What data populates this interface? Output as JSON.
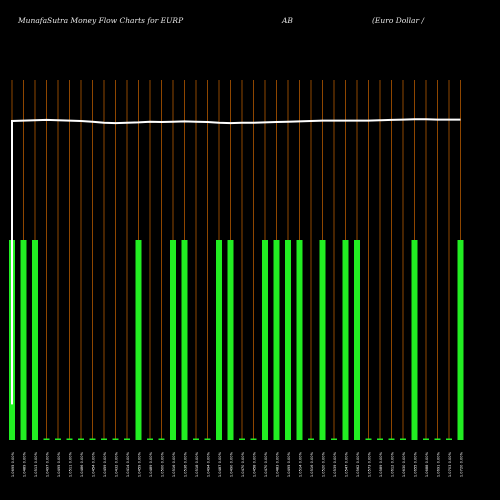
{
  "title": {
    "left": "MunafaSutra  Money Flow  Charts for EURP",
    "middle": "AB",
    "right": "(Euro  Dollar /"
  },
  "colors": {
    "background": "#000000",
    "grid": "#b35900",
    "bar": "#22ee22",
    "line": "#ffffff",
    "label": "#ffffff"
  },
  "chart_data": {
    "type": "bar",
    "title": "MunafaSutra  Money Flow  Charts for EURP AB (Euro  Dollar /",
    "categories": [
      "1.0695 0.00%",
      "1.0489 0.00%",
      "1.0513 0.00%",
      "1.0497 0.00%",
      "1.0495 0.00%",
      "1.0511 0.00%",
      "1.0486 0.00%",
      "1.0454 0.00%",
      "1.0459 0.00%",
      "1.0432 0.00%",
      "1.0414 0.00%",
      "1.0459 0.00%",
      "1.0489 0.00%",
      "1.0500 0.00%",
      "1.0516 0.00%",
      "1.0536 0.00%",
      "1.0518 0.00%",
      "1.0494 0.00%",
      "1.0487 0.00%",
      "1.0490 0.00%",
      "1.0470 0.00%",
      "1.0458 0.00%",
      "1.0470 0.00%",
      "1.0483 0.00%",
      "1.0495 0.00%",
      "1.0514 0.00%",
      "1.0516 0.00%",
      "1.0520 0.00%",
      "1.0539 0.00%",
      "1.0547 0.00%",
      "1.0562 0.00%",
      "1.0573 0.00%",
      "1.0589 0.00%",
      "1.0612 0.00%",
      "1.0630 0.00%",
      "1.0655 0.00%",
      "1.0688 0.00%",
      "1.0691 0.00%",
      "1.0703 0.00%",
      "1.0720 0.00%"
    ],
    "series": [
      {
        "values": [
          1,
          1,
          1,
          0,
          0,
          0,
          0,
          0,
          0,
          0,
          0,
          1,
          0,
          0,
          1,
          1,
          0,
          0,
          1,
          1,
          0,
          0,
          1,
          1,
          1,
          1,
          0,
          1,
          0,
          1,
          1,
          0,
          0,
          0,
          0,
          1,
          0,
          0,
          0,
          1
        ]
      }
    ],
    "line_values": [
      1.0695,
      1.0696,
      1.0697,
      1.0698,
      1.0697,
      1.0696,
      1.0695,
      1.0693,
      1.069,
      1.0689,
      1.069,
      1.0691,
      1.0693,
      1.0692,
      1.0693,
      1.0694,
      1.0693,
      1.0692,
      1.069,
      1.0689,
      1.069,
      1.069,
      1.0691,
      1.0692,
      1.0693,
      1.0694,
      1.0695,
      1.0696,
      1.0696,
      1.0696,
      1.0696,
      1.0696,
      1.0697,
      1.0698,
      1.0699,
      1.07,
      1.07,
      1.0699,
      1.0699,
      1.0699
    ],
    "line_start": 0.99,
    "line_ylim": [
      0.98,
      1.081
    ],
    "ylim": [
      0,
      1
    ],
    "grid": true
  }
}
